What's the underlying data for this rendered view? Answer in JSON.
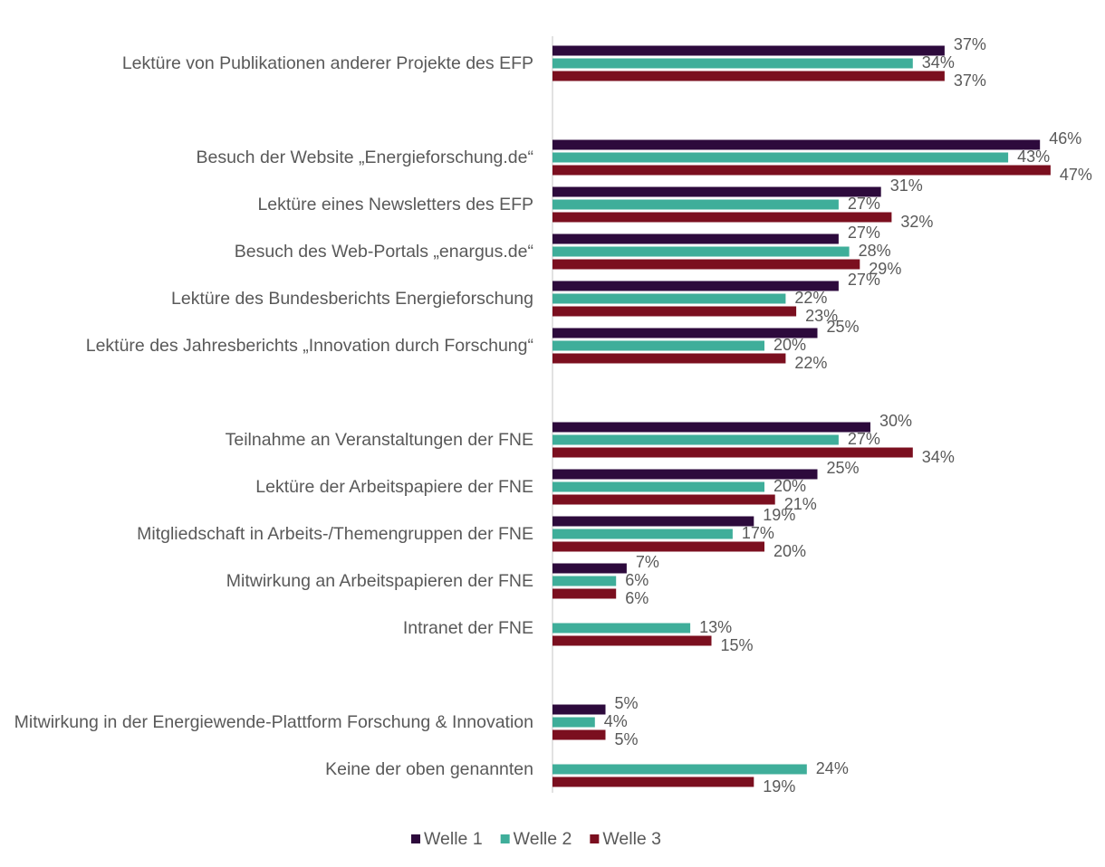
{
  "chart_data": {
    "type": "hbar",
    "categories": [
      "Lektüre von Publikationen anderer Projekte des EFP",
      null,
      "Besuch der Website „Energieforschung.de“",
      "Lektüre eines Newsletters des EFP",
      "Besuch des Web-Portals „enargus.de“",
      "Lektüre des Bundesberichts Energieforschung",
      "Lektüre des Jahresberichts „Innovation durch Forschung“",
      null,
      "Teilnahme an Veranstaltungen der FNE",
      "Lektüre der Arbeitspapiere der FNE",
      "Mitgliedschaft in Arbeits-/Themengruppen der FNE",
      "Mitwirkung an Arbeitspapieren der FNE",
      "Intranet der FNE",
      null,
      "Mitwirkung in der Energiewende-Plattform Forschung & Innovation",
      "Keine der oben genannten"
    ],
    "series": [
      {
        "name": "Welle 1",
        "color": "#2d0a3c",
        "values": [
          37,
          null,
          46,
          31,
          27,
          27,
          25,
          null,
          30,
          25,
          19,
          7,
          null,
          null,
          5,
          null
        ],
        "value_labels": [
          "37%",
          null,
          "46%",
          "31%",
          "27%",
          "27%",
          "25%",
          null,
          "30%",
          "25%",
          "19%",
          "7%",
          null,
          null,
          "5%",
          null
        ]
      },
      {
        "name": "Welle 2",
        "color": "#3fae9a",
        "values": [
          34,
          null,
          43,
          27,
          28,
          22,
          20,
          null,
          27,
          20,
          17,
          6,
          13,
          null,
          4,
          24
        ],
        "value_labels": [
          "34%",
          null,
          "43%",
          "27%",
          "28%",
          "22%",
          "20%",
          null,
          "27%",
          "20%",
          "17%",
          "6%",
          "13%",
          null,
          "4%",
          "24%"
        ]
      },
      {
        "name": "Welle 3",
        "color": "#7b0f1f",
        "values": [
          37,
          null,
          47,
          32,
          29,
          23,
          22,
          null,
          34,
          21,
          20,
          6,
          15,
          null,
          5,
          19
        ],
        "value_labels": [
          "37%",
          null,
          "47%",
          "32%",
          "29%",
          "23%",
          "22%",
          null,
          "34%",
          "21%",
          "20%",
          "6%",
          "15%",
          null,
          "5%",
          "19%"
        ]
      }
    ],
    "xlim": [
      0,
      50
    ],
    "legend": "bottom"
  }
}
